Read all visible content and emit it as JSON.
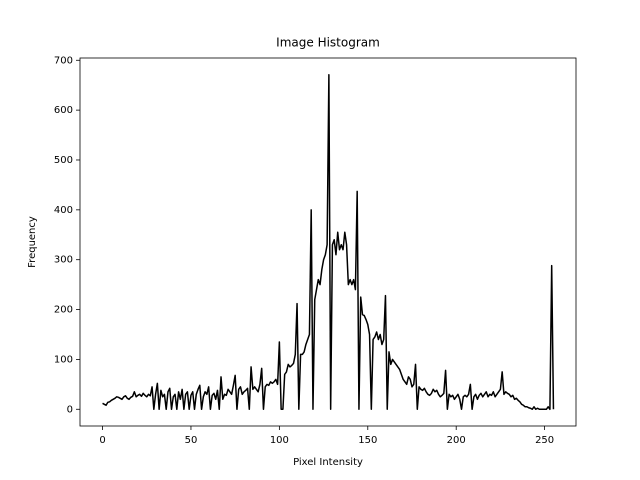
{
  "chart_data": {
    "type": "line",
    "title": "Image Histogram",
    "x_label": "Pixel Intensity",
    "y_label": "Frequency",
    "x": [
      0,
      1,
      2,
      3,
      4,
      5,
      6,
      7,
      8,
      9,
      10,
      11,
      12,
      13,
      14,
      15,
      16,
      17,
      18,
      19,
      20,
      21,
      22,
      23,
      24,
      25,
      26,
      27,
      28,
      29,
      30,
      31,
      32,
      33,
      34,
      35,
      36,
      37,
      38,
      39,
      40,
      41,
      42,
      43,
      44,
      45,
      46,
      47,
      48,
      49,
      50,
      51,
      52,
      53,
      54,
      55,
      56,
      57,
      58,
      59,
      60,
      61,
      62,
      63,
      64,
      65,
      66,
      67,
      68,
      69,
      70,
      71,
      72,
      73,
      74,
      75,
      76,
      77,
      78,
      79,
      80,
      81,
      82,
      83,
      84,
      85,
      86,
      87,
      88,
      89,
      90,
      91,
      92,
      93,
      94,
      95,
      96,
      97,
      98,
      99,
      100,
      101,
      102,
      103,
      104,
      105,
      106,
      107,
      108,
      109,
      110,
      111,
      112,
      113,
      114,
      115,
      116,
      117,
      118,
      119,
      120,
      121,
      122,
      123,
      124,
      125,
      126,
      127,
      128,
      129,
      130,
      131,
      132,
      133,
      134,
      135,
      136,
      137,
      138,
      139,
      140,
      141,
      142,
      143,
      144,
      145,
      146,
      147,
      148,
      149,
      150,
      151,
      152,
      153,
      154,
      155,
      156,
      157,
      158,
      159,
      160,
      161,
      162,
      163,
      164,
      165,
      166,
      167,
      168,
      169,
      170,
      171,
      172,
      173,
      174,
      175,
      176,
      177,
      178,
      179,
      180,
      181,
      182,
      183,
      184,
      185,
      186,
      187,
      188,
      189,
      190,
      191,
      192,
      193,
      194,
      195,
      196,
      197,
      198,
      199,
      200,
      201,
      202,
      203,
      204,
      205,
      206,
      207,
      208,
      209,
      210,
      211,
      212,
      213,
      214,
      215,
      216,
      217,
      218,
      219,
      220,
      221,
      222,
      223,
      224,
      225,
      226,
      227,
      228,
      229,
      230,
      231,
      232,
      233,
      234,
      235,
      236,
      237,
      238,
      239,
      240,
      241,
      242,
      243,
      244,
      245,
      246,
      247,
      248,
      249,
      250,
      251,
      252,
      253,
      254,
      255
    ],
    "series": [
      {
        "color": "#000000",
        "values": [
          12,
          10,
          8,
          14,
          15,
          18,
          20,
          22,
          25,
          24,
          22,
          20,
          25,
          27,
          22,
          20,
          24,
          26,
          35,
          25,
          28,
          30,
          26,
          32,
          28,
          25,
          30,
          27,
          45,
          0,
          30,
          52,
          0,
          38,
          25,
          30,
          0,
          35,
          42,
          0,
          25,
          30,
          0,
          35,
          20,
          40,
          0,
          30,
          35,
          0,
          28,
          35,
          0,
          30,
          40,
          48,
          0,
          25,
          35,
          30,
          45,
          0,
          28,
          32,
          20,
          38,
          0,
          65,
          20,
          30,
          28,
          40,
          35,
          30,
          48,
          68,
          0,
          40,
          45,
          30,
          35,
          38,
          42,
          0,
          85,
          40,
          45,
          40,
          35,
          50,
          82,
          0,
          45,
          50,
          48,
          55,
          52,
          55,
          60,
          50,
          135,
          0,
          0,
          70,
          75,
          90,
          85,
          88,
          92,
          110,
          212,
          0,
          110,
          110,
          115,
          130,
          140,
          150,
          400,
          0,
          220,
          240,
          260,
          250,
          280,
          300,
          310,
          330,
          671,
          0,
          330,
          340,
          310,
          355,
          320,
          330,
          320,
          355,
          330,
          250,
          260,
          250,
          260,
          240,
          437,
          0,
          225,
          190,
          188,
          180,
          170,
          150,
          0,
          140,
          145,
          155,
          140,
          150,
          130,
          140,
          228,
          0,
          115,
          90,
          100,
          95,
          90,
          85,
          80,
          70,
          60,
          55,
          50,
          65,
          60,
          45,
          50,
          90,
          0,
          45,
          40,
          38,
          42,
          35,
          30,
          28,
          32,
          40,
          35,
          38,
          30,
          25,
          28,
          32,
          78,
          0,
          30,
          25,
          28,
          20,
          25,
          30,
          20,
          0,
          25,
          28,
          25,
          30,
          50,
          0,
          25,
          30,
          20,
          28,
          32,
          25,
          30,
          35,
          25,
          30,
          28,
          35,
          25,
          30,
          35,
          40,
          75,
          30,
          35,
          32,
          30,
          25,
          28,
          20,
          22,
          18,
          15,
          10,
          8,
          5,
          5,
          3,
          2,
          0,
          5,
          0,
          2,
          0,
          0,
          0,
          0,
          0,
          5,
          0,
          288,
          0
        ]
      }
    ],
    "xlim": [
      -12.75,
      267.75
    ],
    "ylim": [
      -33.55,
      704.55
    ],
    "xticks": [
      0,
      50,
      100,
      150,
      200,
      250
    ],
    "yticks": [
      0,
      100,
      200,
      300,
      400,
      500,
      600,
      700
    ],
    "grid": false
  }
}
